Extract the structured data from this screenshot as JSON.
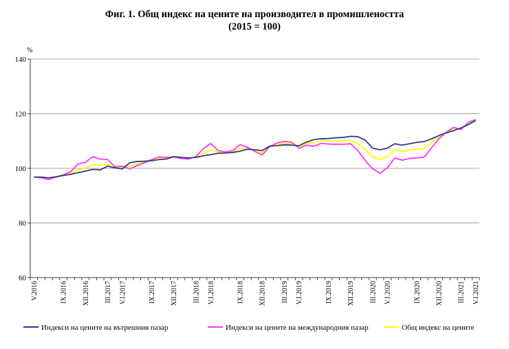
{
  "chart_data": {
    "type": "line",
    "title": "Фиг. 1. Общ индекс на цените на производител в промишлеността",
    "subtitle": "(2015 = 100)",
    "y_unit": "%",
    "ylim": [
      60,
      140
    ],
    "yticks": [
      60,
      80,
      100,
      120,
      140
    ],
    "grid": "horizontal",
    "legend_position": "bottom",
    "x": [
      "2016-05",
      "2016-06",
      "2016-07",
      "2016-08",
      "2016-09",
      "2016-10",
      "2016-11",
      "2016-12",
      "2017-01",
      "2017-02",
      "2017-03",
      "2017-04",
      "2017-05",
      "2017-06",
      "2017-07",
      "2017-08",
      "2017-09",
      "2017-10",
      "2017-11",
      "2017-12",
      "2018-01",
      "2018-02",
      "2018-03",
      "2018-04",
      "2018-05",
      "2018-06",
      "2018-07",
      "2018-08",
      "2018-09",
      "2018-10",
      "2018-11",
      "2018-12",
      "2019-01",
      "2019-02",
      "2019-03",
      "2019-04",
      "2019-05",
      "2019-06",
      "2019-07",
      "2019-08",
      "2019-09",
      "2019-10",
      "2019-11",
      "2019-12",
      "2020-01",
      "2020-02",
      "2020-03",
      "2020-04",
      "2020-05",
      "2020-06",
      "2020-07",
      "2020-08",
      "2020-09",
      "2020-10",
      "2020-11",
      "2020-12",
      "2021-01",
      "2021-02",
      "2021-03",
      "2021-04",
      "2021-05"
    ],
    "x_tick_labels": [
      {
        "i": 0,
        "label": "V.2016"
      },
      {
        "i": 4,
        "label": "IX.2016"
      },
      {
        "i": 7,
        "label": "XII.2016"
      },
      {
        "i": 10,
        "label": "III.2017"
      },
      {
        "i": 12,
        "label": "V.I.2017"
      },
      {
        "i": 16,
        "label": "IX.2017"
      },
      {
        "i": 19,
        "label": "XII.2017"
      },
      {
        "i": 22,
        "label": "III.2018"
      },
      {
        "i": 24,
        "label": "V.I.2018"
      },
      {
        "i": 28,
        "label": "IX.2018"
      },
      {
        "i": 31,
        "label": "XII.2018"
      },
      {
        "i": 34,
        "label": "III.2019"
      },
      {
        "i": 36,
        "label": "V.I.2019"
      },
      {
        "i": 40,
        "label": "IX.2019"
      },
      {
        "i": 43,
        "label": "XII.2019"
      },
      {
        "i": 46,
        "label": "III.2020"
      },
      {
        "i": 48,
        "label": "V.I.2020"
      },
      {
        "i": 52,
        "label": "IX.2020"
      },
      {
        "i": 55,
        "label": "XII.2020"
      },
      {
        "i": 58,
        "label": "III.2021"
      },
      {
        "i": 60,
        "label": "V.I.2021"
      }
    ],
    "series": [
      {
        "name": "Индекси на цените на вътрешния пазар",
        "color": "#2e3a87",
        "values": [
          96.8,
          96.8,
          96.5,
          96.9,
          97.4,
          97.8,
          98.4,
          99.0,
          99.6,
          99.4,
          100.8,
          100.2,
          99.8,
          102.0,
          102.5,
          102.6,
          102.8,
          103.2,
          103.4,
          104.3,
          104.0,
          103.8,
          104.0,
          104.6,
          105.0,
          105.5,
          105.6,
          105.8,
          106.3,
          107.0,
          106.8,
          106.5,
          108.1,
          108.3,
          108.6,
          108.5,
          108.3,
          109.6,
          110.5,
          110.8,
          110.9,
          111.2,
          111.3,
          111.7,
          111.6,
          110.3,
          107.4,
          106.8,
          107.4,
          109.0,
          108.5,
          109.0,
          109.5,
          109.8,
          110.8,
          112.0,
          113.0,
          113.8,
          114.8,
          116.0,
          117.5
        ]
      },
      {
        "name": "Индекси на цените на международния пазар",
        "color": "#ff33ff",
        "values": [
          96.8,
          96.5,
          95.9,
          96.8,
          97.6,
          98.8,
          101.6,
          102.2,
          104.3,
          103.4,
          103.2,
          100.6,
          100.8,
          99.8,
          101.0,
          102.0,
          103.2,
          104.2,
          104.0,
          104.2,
          103.6,
          103.4,
          104.3,
          107.2,
          109.1,
          106.5,
          106.0,
          106.5,
          108.7,
          107.7,
          106.2,
          104.9,
          107.9,
          109.3,
          109.8,
          109.6,
          107.3,
          108.5,
          108.1,
          109.1,
          108.9,
          108.8,
          108.8,
          109.0,
          106.5,
          102.8,
          99.8,
          98.2,
          100.2,
          103.8,
          103.0,
          103.6,
          103.8,
          104.1,
          107.5,
          110.8,
          113.2,
          115.0,
          114.2,
          116.8,
          117.9
        ]
      },
      {
        "name": "Общ индекс на цените",
        "color": "#ffff00",
        "values": [
          96.8,
          96.6,
          96.2,
          96.8,
          97.5,
          98.3,
          99.4,
          100.2,
          101.4,
          101.0,
          101.5,
          100.3,
          100.3,
          100.8,
          101.6,
          102.3,
          102.9,
          103.6,
          103.7,
          104.3,
          103.8,
          103.6,
          104.1,
          105.6,
          106.6,
          106.0,
          105.8,
          106.1,
          107.3,
          107.3,
          106.5,
          105.8,
          108.0,
          108.7,
          109.1,
          109.0,
          107.9,
          109.1,
          109.4,
          110.0,
          109.9,
          110.0,
          110.1,
          110.3,
          109.1,
          106.9,
          104.2,
          103.3,
          104.2,
          106.8,
          106.2,
          106.7,
          107.1,
          107.3,
          109.4,
          111.5,
          113.1,
          114.5,
          114.6,
          116.5,
          117.7
        ]
      }
    ]
  }
}
